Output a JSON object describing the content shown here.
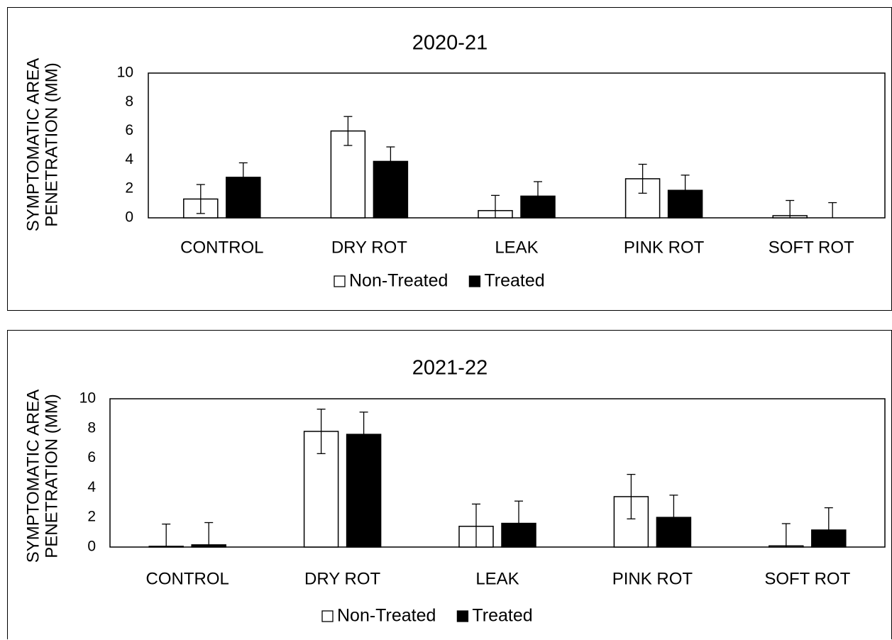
{
  "chart_data": [
    {
      "type": "bar",
      "title": "2020-21",
      "ylabel_lines": [
        "SYMPTOMATIC AREA",
        "PENETRATION (MM)"
      ],
      "xlabel": "",
      "ylim": [
        0,
        10
      ],
      "yticks": [
        "0",
        "2",
        "4",
        "6",
        "8",
        "10"
      ],
      "categories": [
        "CONTROL",
        "DRY ROT",
        "LEAK",
        "PINK ROT",
        "SOFT ROT"
      ],
      "series": [
        {
          "name": "Non-Treated",
          "fill": "#ffffff",
          "values": [
            1.3,
            6.0,
            0.5,
            2.7,
            0.15
          ],
          "errors": [
            1.0,
            1.0,
            1.05,
            1.0,
            1.05
          ]
        },
        {
          "name": "Treated",
          "fill": "#000000",
          "values": [
            2.8,
            3.9,
            1.5,
            1.9,
            0.0
          ],
          "errors": [
            1.0,
            1.0,
            1.0,
            1.05,
            1.05
          ]
        }
      ],
      "legend_position": "bottom",
      "grid": false
    },
    {
      "type": "bar",
      "title": "2021-22",
      "ylabel_lines": [
        "SYMPTOMATIC AREA",
        "PENETRATION (MM)"
      ],
      "xlabel": "",
      "ylim": [
        0,
        10
      ],
      "yticks": [
        "0",
        "2",
        "4",
        "6",
        "8",
        "10"
      ],
      "categories": [
        "CONTROL",
        "DRY ROT",
        "LEAK",
        "PINK ROT",
        "SOFT ROT"
      ],
      "series": [
        {
          "name": "Non-Treated",
          "fill": "#ffffff",
          "values": [
            0.05,
            7.8,
            1.4,
            3.4,
            0.08
          ],
          "errors": [
            1.5,
            1.5,
            1.5,
            1.5,
            1.5
          ]
        },
        {
          "name": "Treated",
          "fill": "#000000",
          "values": [
            0.15,
            7.6,
            1.6,
            2.0,
            1.15
          ],
          "errors": [
            1.5,
            1.5,
            1.5,
            1.5,
            1.5
          ]
        }
      ],
      "legend_position": "bottom",
      "grid": false
    }
  ]
}
